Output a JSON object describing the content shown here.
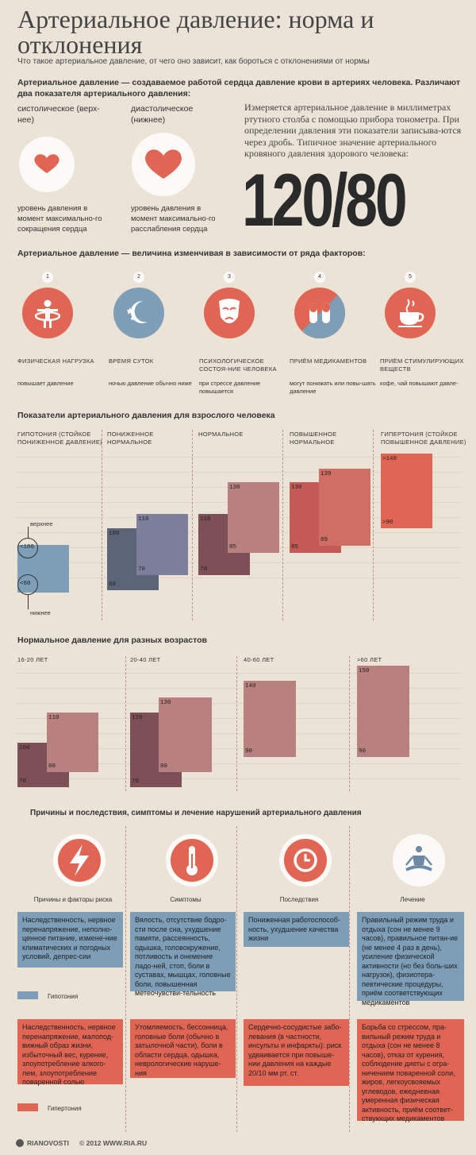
{
  "header": {
    "title": "Артериальное давление: норма и отклонения",
    "subtitle": "Что такое артериальное давление,  от чего оно зависит,  как бороться с отклонениями от нормы"
  },
  "definition": {
    "text": "Артериальное давление — создаваемое работой сердца давление крови в артериях человека. Различают два показателя артериального давления:",
    "systolic_title": "систолическое (верх-нее)",
    "systolic_desc": "уровень давления в момент максимально-го сокращения сердца",
    "diastolic_title": "диастолическое (нижнее)",
    "diastolic_desc": "уровень давления в момент максимально-го расслабления сердца",
    "measure_text": "Измеряется артериальное давление в миллиметрах ртутного столба с помощью прибора тонометра. При определении давления эти показатели записыва-ются через дробь. Типичное значение артериального кровяного давления здорового человека:",
    "big_value": "120/80"
  },
  "factors": {
    "heading": "Артериальное давление — величина изменчивая в зависимости от ряда факторов:",
    "items": [
      {
        "num": "1",
        "name": "ФИЗИЧЕСКАЯ НАГРУЗКА",
        "effect": "повышает давление",
        "icon": "exercise-icon"
      },
      {
        "num": "2",
        "name": "ВРЕМЯ СУТОК",
        "effect": "ночью давление обычно ниже",
        "icon": "moon-icon"
      },
      {
        "num": "3",
        "name": "ПСИХОЛОГИЧЕСКОЕ СОСТОЯ-НИЕ ЧЕЛОВЕКА",
        "effect": "при стрессе давление повышается",
        "icon": "mask-icon"
      },
      {
        "num": "4",
        "name": "ПРИЁМ МЕДИКАМЕНТОВ",
        "effect": "могут понижать или повы-шать давление",
        "icon": "pills-icon"
      },
      {
        "num": "5",
        "name": "ПРИЁМ СТИМУЛИРУЮЩИХ ВЕЩЕСТВ",
        "effect": "кофе, чай повышают давле-",
        "icon": "coffee-icon"
      }
    ]
  },
  "adult_chart": {
    "heading": "Показатели артериального давления для взрослого человека",
    "upper_label": "верхнее",
    "lower_label": "нижнее",
    "categories": [
      {
        "name": "ГИПОТОНИЯ (СТОЙКОЕ ПОНИЖЕННОЕ ДАВЛЕНИЕ)",
        "dia_label": "<60",
        "sys_label": "<100"
      },
      {
        "name": "ПОНИЖЕННОЕ НОРМАЛЬНОЕ",
        "dia_top": "100",
        "dia_bottom": "60",
        "sys_top": "110",
        "sys_bottom": "70"
      },
      {
        "name": "НОРМАЛЬНОЕ",
        "dia_top": "110",
        "dia_bottom": "70",
        "sys_top": "130",
        "sys_bottom": "85"
      },
      {
        "name": "ПОВЫШЕННОЕ НОРМАЛЬНОЕ",
        "dia_top": "130",
        "dia_bottom": "85",
        "sys_top": "139",
        "sys_bottom": "89"
      },
      {
        "name": "ГИПЕРТОНИЯ (СТОЙКОЕ ПОВЫШЕННОЕ ДАВЛЕНИЕ)",
        "sys_top": ">140",
        "sys_bottom": ">90"
      }
    ]
  },
  "age_chart": {
    "heading": "Нормальное давление для разных возрастов",
    "groups": [
      {
        "name": "16-20 ЛЕТ",
        "low_top": "100",
        "low_bottom": "70",
        "high_top": "110",
        "high_bottom": "80"
      },
      {
        "name": "20-40 ЛЕТ",
        "low_top": "120",
        "low_bottom": "70",
        "high_top": "130",
        "high_bottom": "80"
      },
      {
        "name": "40-60 ЛЕТ",
        "high_top": "140",
        "high_bottom": "90"
      },
      {
        "name": ">60 ЛЕТ",
        "high_top": "150",
        "high_bottom": "90"
      }
    ]
  },
  "causes": {
    "heading": "Причины и последствия, симптомы и лечение нарушений артериального давления",
    "columns": [
      {
        "title": "Причины и факторы риска",
        "icon": "lightning-icon"
      },
      {
        "title": "Симптомы",
        "icon": "thermometer-icon"
      },
      {
        "title": "Последствия",
        "icon": "clock-icon"
      },
      {
        "title": "Лечение",
        "icon": "meditation-icon"
      }
    ],
    "hypotension_label": "Гипотония",
    "hypertension_label": "Гипертония",
    "hypotension": [
      "Наследственность, нервное перенапряжение, неполно-ценное питание, измене-ние климатических и погодных условий, депрес-сии",
      "Вялость, отсутствие бодро-сти после сна, ухудшение памяти, рассеянность, одышка, головокружение, потливость и онемение ладо-ней, стоп, боли в суставах, мышцах, головные боли, повышенная метеочувстви-тельность",
      "Пониженная работоспособ-ность, ухудшение качества жизни",
      "Правильный режим труда и отдыха (сон не менее 9 часов), правильное питан-ие (не менее 4 раз в день), усиление физической активности (но без боль-ших нагрузок), физиотера-певтические процедуры, приём соответствующих медикаментов"
    ],
    "hypertension": [
      "Наследственность, нервное перенапряжение, малопод-вижный образ жизни, избыточный вес, курение, злоупотребление алкого-лем, злоупотребление поваренной солью",
      "Утомляемость, бессонница, головные боли (обычно в затылочной части), боли в области сердца, одышка, неврологические наруше-ния",
      "Сердечно-сосудистые забо-левания (в частности, инсульты и инфаркты): риск удваивается при повыше-нии давления на каждые 20/10 мм рт. ст.",
      "Борьба со стрессом, пра-вильный режим труда и отдыха (сон не менее 8 часов), отказ от курения, соблюдение диеты с огра-ничением поваренной соли, жиров, легкоусвояемых углеводов, ежедневная умеренная физическая активность, приём соответ-ствующих медикаментов"
    ]
  },
  "footer": {
    "logo": "RIANOVOSTI",
    "copyright": "© 2012 WWW.RIA.RU"
  },
  "colors": {
    "background": "#ece3d7",
    "red": "#e16553",
    "blue": "#7e9db7",
    "navy": "#5c6478",
    "maroon": "#7d5058",
    "rose": "#b8807f"
  }
}
